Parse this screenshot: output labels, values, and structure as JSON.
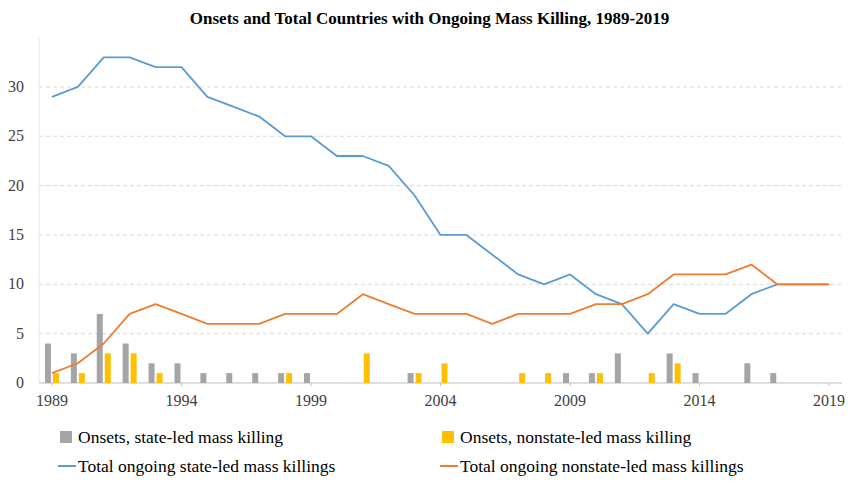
{
  "chart_data": {
    "type": "combo",
    "title": "Onsets and Total Countries with Ongoing Mass Killing, 1989-2019",
    "x": [
      1989,
      1990,
      1991,
      1992,
      1993,
      1994,
      1995,
      1996,
      1997,
      1998,
      1999,
      2000,
      2001,
      2002,
      2003,
      2004,
      2005,
      2006,
      2007,
      2008,
      2009,
      2010,
      2011,
      2012,
      2013,
      2014,
      2015,
      2016,
      2017,
      2018,
      2019
    ],
    "xlim": [
      1988.5,
      2019.5
    ],
    "xticks": [
      1989,
      1994,
      1999,
      2004,
      2009,
      2014,
      2019
    ],
    "ylim": [
      0,
      35
    ],
    "yticks": [
      0,
      5,
      10,
      15,
      20,
      25,
      30
    ],
    "grid": true,
    "legend": "bottom",
    "series": [
      {
        "name": "Onsets, state-led mass killing",
        "type": "bar",
        "color": "#a5a5a5",
        "values": [
          4,
          3,
          7,
          4,
          2,
          2,
          1,
          1,
          1,
          1,
          1,
          0,
          0,
          0,
          1,
          0,
          0,
          0,
          0,
          0,
          1,
          1,
          3,
          0,
          3,
          1,
          0,
          2,
          1,
          0,
          0
        ]
      },
      {
        "name": "Onsets, nonstate-led mass killing",
        "type": "bar",
        "color": "#ffc000",
        "values": [
          1,
          1,
          3,
          3,
          1,
          0,
          0,
          0,
          0,
          1,
          0,
          0,
          3,
          0,
          1,
          2,
          0,
          0,
          1,
          1,
          0,
          1,
          0,
          1,
          2,
          0,
          0,
          0,
          0,
          0,
          0
        ]
      },
      {
        "name": "Total ongoing state-led mass killings",
        "type": "line",
        "color": "#5b9bd5",
        "values": [
          29,
          30,
          33,
          33,
          32,
          32,
          29,
          28,
          27,
          25,
          25,
          23,
          23,
          22,
          19,
          15,
          15,
          13,
          11,
          10,
          11,
          9,
          8,
          5,
          8,
          7,
          7,
          9,
          10,
          10,
          10
        ]
      },
      {
        "name": "Total ongoing nonstate-led mass killings",
        "type": "line",
        "color": "#ed7d31",
        "values": [
          1,
          2,
          4,
          7,
          8,
          7,
          6,
          6,
          6,
          7,
          7,
          7,
          9,
          8,
          7,
          7,
          7,
          6,
          7,
          7,
          7,
          8,
          8,
          9,
          11,
          11,
          11,
          12,
          10,
          10,
          10
        ]
      }
    ]
  }
}
